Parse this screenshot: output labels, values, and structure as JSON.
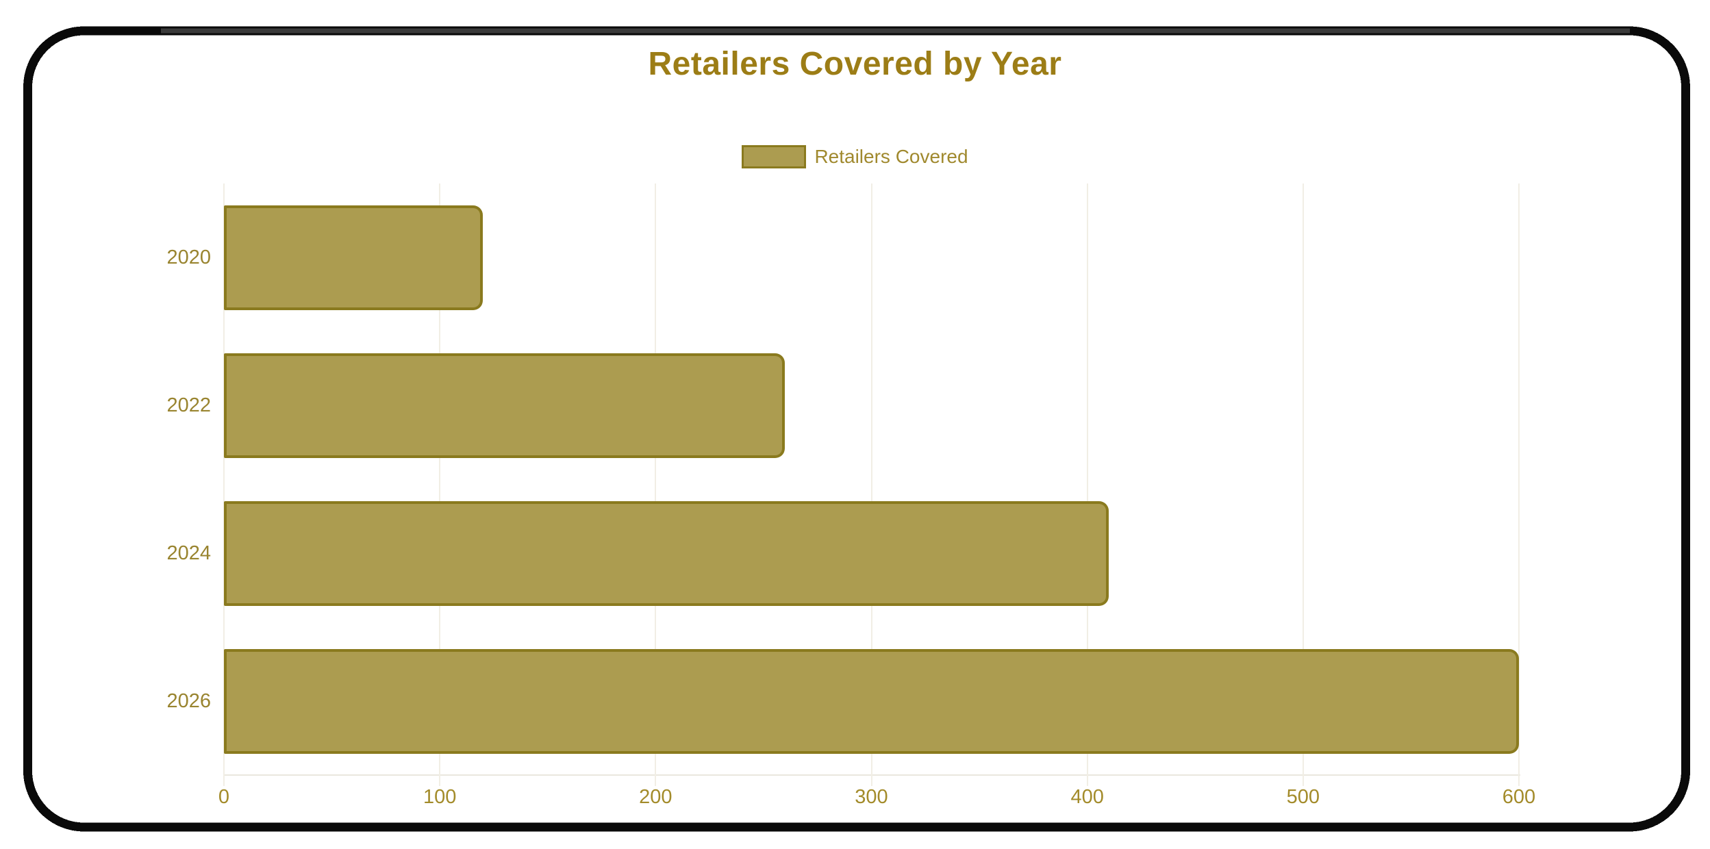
{
  "frame": {
    "style": "hand-drawn pixelated rounded border",
    "color": "#0a0a0a",
    "accent": "#3a3a3a"
  },
  "chart_data": {
    "type": "bar",
    "orientation": "horizontal",
    "title": "Retailers Covered by Year",
    "categories": [
      "2020",
      "2022",
      "2024",
      "2026"
    ],
    "series": [
      {
        "name": "Retailers Covered",
        "values": [
          120,
          260,
          410,
          600
        ]
      }
    ],
    "xlabel": "",
    "ylabel": "",
    "xlim": [
      0,
      600
    ],
    "xticks": [
      0,
      100,
      200,
      300,
      400,
      500,
      600
    ],
    "grid": "vertical-only",
    "legend_position": "top",
    "colors": {
      "bar_fill": "#AC9C50",
      "bar_border": "#8A7A1E",
      "title_text": "#9C7D16",
      "legend_text": "#A0892E",
      "axis_tick_text": "#A38B2A",
      "category_text": "#99842F",
      "gridline": "#F1EEE5",
      "axis_line": "#EAE7DE"
    }
  }
}
